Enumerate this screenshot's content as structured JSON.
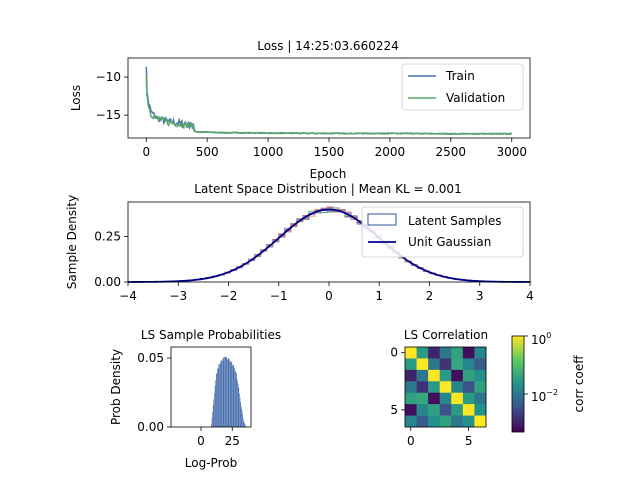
{
  "chart_data": [
    {
      "type": "line",
      "title": "Loss | 14:25:03.660224",
      "xlabel": "Epoch",
      "ylabel": "Loss",
      "xlim": [
        -150,
        3150
      ],
      "ylim": [
        -18.0,
        -7.5
      ],
      "xticks": [
        0,
        500,
        1000,
        1500,
        2000,
        2500,
        3000
      ],
      "yticks": [
        -10,
        -15
      ],
      "legend": "top-right",
      "series": [
        {
          "name": "Train",
          "color": "#4c72b0",
          "x": [
            0,
            5,
            10,
            20,
            40,
            80,
            120,
            200,
            300,
            380,
            400,
            420,
            600,
            1000,
            1500,
            2000,
            2500,
            3000
          ],
          "y": [
            -8.2,
            -11.5,
            -12.5,
            -13.5,
            -14.6,
            -15.3,
            -15.6,
            -15.9,
            -16.1,
            -16.3,
            -17.1,
            -17.2,
            -17.3,
            -17.35,
            -17.4,
            -17.4,
            -17.45,
            -17.45
          ]
        },
        {
          "name": "Validation",
          "color": "#55a868",
          "x": [
            0,
            5,
            10,
            20,
            40,
            80,
            120,
            200,
            300,
            380,
            400,
            420,
            600,
            1000,
            1500,
            2000,
            2500,
            3000
          ],
          "y": [
            -9.5,
            -12.0,
            -12.8,
            -13.8,
            -14.8,
            -15.4,
            -15.7,
            -16.0,
            -16.2,
            -16.4,
            -17.1,
            -17.2,
            -17.3,
            -17.35,
            -17.4,
            -17.4,
            -17.45,
            -17.45
          ]
        }
      ]
    },
    {
      "type": "bar",
      "title": "Latent Space Distribution | Mean KL = 0.001",
      "xlabel": "",
      "ylabel": "Sample Density",
      "xlim": [
        -4,
        4
      ],
      "ylim": [
        0,
        0.44
      ],
      "xticks": [
        -4,
        -3,
        -2,
        -1,
        0,
        1,
        2,
        3,
        4
      ],
      "yticks": [
        0.0,
        0.25
      ],
      "legend": "top-right",
      "series": [
        {
          "name": "Latent Samples",
          "color": "#4c72b0",
          "kind": "histogram"
        },
        {
          "name": "Unit Gaussian",
          "color": "#00008b",
          "kind": "line",
          "mean": 0,
          "std": 1
        }
      ]
    },
    {
      "type": "bar",
      "title": "LS Sample Probabilities",
      "xlabel": "Log-Prob",
      "ylabel": "Prob Density",
      "xlim": [
        -24,
        40
      ],
      "ylim": [
        0,
        0.058
      ],
      "xticks": [
        0,
        25
      ],
      "yticks": [
        0.0,
        0.05
      ],
      "ytick_labels": [
        "0.00",
        "0.05"
      ],
      "color": "#4c72b0",
      "bins_x": [
        8,
        10,
        12,
        14,
        16,
        18,
        20,
        22,
        24,
        26,
        28,
        30,
        32,
        34
      ],
      "values": [
        0.002,
        0.02,
        0.038,
        0.045,
        0.048,
        0.05,
        0.05,
        0.049,
        0.047,
        0.044,
        0.038,
        0.028,
        0.015,
        0.004
      ]
    },
    {
      "type": "heatmap",
      "title": "LS Correlation",
      "xticks": [
        0,
        5
      ],
      "yticks": [
        0,
        5
      ],
      "colorbar": {
        "label": "corr coeff",
        "scale": "log",
        "ticks": [
          "10^0",
          "10^-2"
        ]
      },
      "matrix": [
        [
          1.0,
          0.05,
          0.003,
          0.02,
          0.06,
          0.002,
          0.03
        ],
        [
          0.05,
          1.0,
          0.02,
          0.004,
          0.07,
          0.03,
          0.01
        ],
        [
          0.003,
          0.02,
          1.0,
          0.05,
          0.002,
          0.06,
          0.04
        ],
        [
          0.02,
          0.004,
          0.05,
          1.0,
          0.03,
          0.008,
          0.06
        ],
        [
          0.06,
          0.07,
          0.002,
          0.03,
          1.0,
          0.05,
          0.02
        ],
        [
          0.002,
          0.03,
          0.06,
          0.008,
          0.05,
          1.0,
          0.04
        ],
        [
          0.03,
          0.01,
          0.04,
          0.06,
          0.02,
          0.04,
          1.0
        ]
      ]
    }
  ]
}
